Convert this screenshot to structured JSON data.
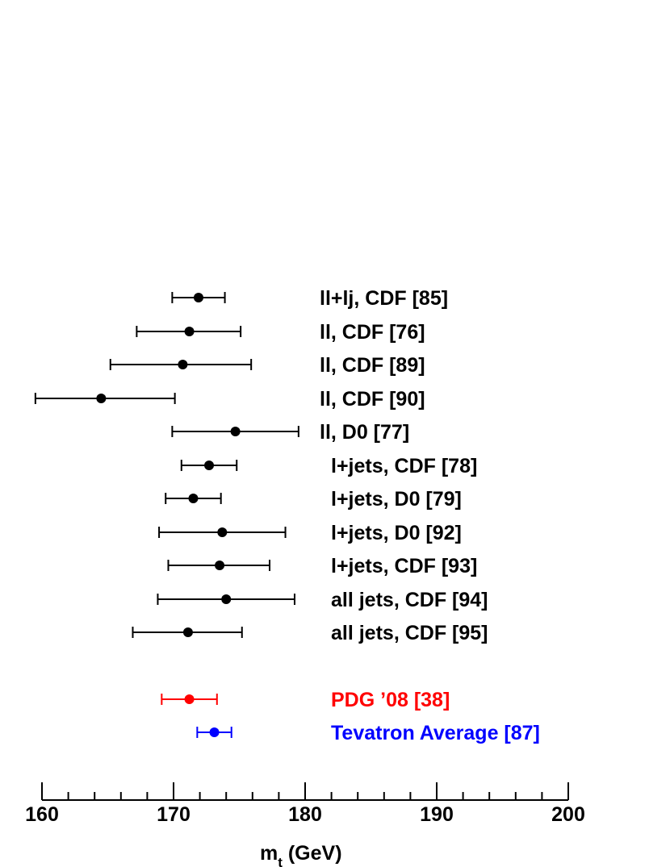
{
  "chart_data": {
    "type": "scatter",
    "title": "",
    "xlabel": "m",
    "xlabel_subscript": "t",
    "xlabel_unit": " (GeV)",
    "xlim": [
      160,
      200
    ],
    "xticks": [
      "160",
      "170",
      "180",
      "190",
      "200"
    ],
    "grid": false,
    "measurements": [
      {
        "label": "ll+lj, CDF [85]",
        "value": 171.9,
        "low": 169.9,
        "high": 173.9,
        "color": "#000000"
      },
      {
        "label": "ll, CDF [76]",
        "value": 171.2,
        "low": 167.2,
        "high": 175.1,
        "color": "#000000"
      },
      {
        "label": "ll, CDF [89]",
        "value": 170.7,
        "low": 165.2,
        "high": 175.9,
        "color": "#000000"
      },
      {
        "label": "ll, CDF [90]",
        "value": 164.5,
        "low": 159.5,
        "high": 170.1,
        "color": "#000000"
      },
      {
        "label": "ll, D0 [77]",
        "value": 174.7,
        "low": 169.9,
        "high": 179.5,
        "color": "#000000"
      },
      {
        "label": "l+jets, CDF [78]",
        "value": 172.7,
        "low": 170.6,
        "high": 174.8,
        "color": "#000000"
      },
      {
        "label": "l+jets, D0 [79]",
        "value": 171.5,
        "low": 169.4,
        "high": 173.6,
        "color": "#000000"
      },
      {
        "label": "l+jets, D0 [92]",
        "value": 173.7,
        "low": 168.9,
        "high": 178.5,
        "color": "#000000"
      },
      {
        "label": "l+jets, CDF [93]",
        "value": 173.5,
        "low": 169.6,
        "high": 177.3,
        "color": "#000000"
      },
      {
        "label": "all jets, CDF [94]",
        "value": 174.0,
        "low": 168.8,
        "high": 179.2,
        "color": "#000000"
      },
      {
        "label": "all jets, CDF [95]",
        "value": 171.1,
        "low": 166.9,
        "high": 175.2,
        "color": "#000000"
      },
      {
        "label": "PDG ’08 [38]",
        "value": 171.2,
        "low": 169.1,
        "high": 173.3,
        "color": "#ff0000"
      },
      {
        "label": "Tevatron Average [87]",
        "value": 173.1,
        "low": 171.8,
        "high": 174.4,
        "color": "#0000ff"
      }
    ]
  }
}
